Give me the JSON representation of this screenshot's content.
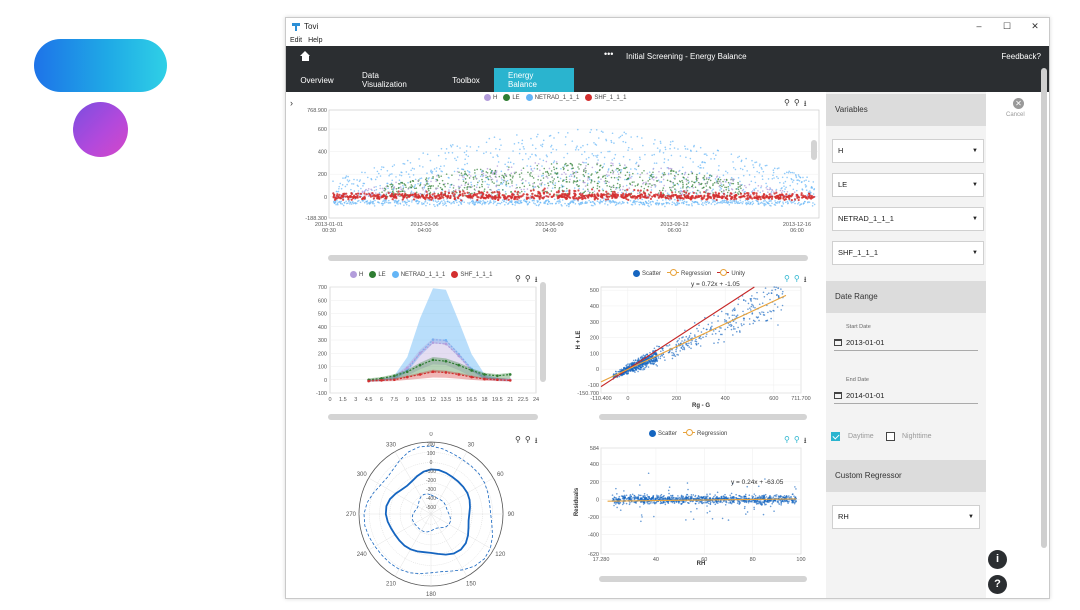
{
  "window": {
    "app_name": "Tovi",
    "controls": [
      "–",
      "☐",
      "✕"
    ]
  },
  "menu": {
    "items": [
      "Edit",
      "Help"
    ]
  },
  "header": {
    "more_label": "•••",
    "title": "Initial Screening - Energy Balance",
    "feedback": "Feedback?"
  },
  "tabs": [
    {
      "label": "Overview",
      "active": false
    },
    {
      "label": "Data Visualization",
      "active": false
    },
    {
      "label": "Toolbox",
      "active": false
    },
    {
      "label": "Energy Balance",
      "active": true
    }
  ],
  "colors": {
    "accent": "#2ab4cf",
    "H": "#b39ddb",
    "LE": "#2e7d32",
    "NETRAD": "#64b5f6",
    "SHF": "#d32f2f",
    "scatter": "#1565c0",
    "regression": "#e8a33c",
    "unity": "#c62828"
  },
  "icons": {
    "expand": "chevron-right-icon",
    "zoom_out": "zoom-out-icon",
    "zoom_in": "zoom-in-icon",
    "download": "download-icon"
  },
  "legend_series": [
    "H",
    "LE",
    "NETRAD_1_1_1",
    "SHF_1_1_1"
  ],
  "chart_data": [
    {
      "type": "scatter",
      "id": "timeseries",
      "legend": [
        "H",
        "LE",
        "NETRAD_1_1_1",
        "SHF_1_1_1"
      ],
      "ytick_labels": [
        "768.900",
        "600",
        "400",
        "200",
        "0",
        "-188.300"
      ],
      "xtick_labels": [
        [
          "2013-01-01",
          "00:30"
        ],
        [
          "2013-03-06",
          "04:00"
        ],
        [
          "2013-06-09",
          "04:00"
        ],
        [
          "2013-09-12",
          "06:00"
        ],
        [
          "2013-12-16",
          "06:00"
        ]
      ]
    },
    {
      "type": "line",
      "id": "diurnal",
      "legend": [
        "H",
        "LE",
        "NETRAD_1_1_1",
        "SHF_1_1_1"
      ],
      "x": [
        4.5,
        6,
        7.5,
        9,
        10.5,
        12,
        13.5,
        15,
        16.5,
        18,
        19.5,
        21
      ],
      "series": [
        {
          "name": "NETRAD_1_1_1",
          "values": [
            -10,
            -5,
            20,
            150,
            420,
            630,
            620,
            400,
            170,
            30,
            5,
            -5
          ]
        },
        {
          "name": "H",
          "values": [
            -5,
            0,
            20,
            90,
            200,
            280,
            270,
            180,
            70,
            20,
            5,
            0
          ]
        },
        {
          "name": "LE",
          "values": [
            0,
            10,
            30,
            60,
            110,
            150,
            140,
            110,
            70,
            40,
            30,
            40
          ]
        },
        {
          "name": "SHF_1_1_1",
          "values": [
            -10,
            -5,
            0,
            20,
            40,
            60,
            55,
            40,
            20,
            5,
            0,
            -5
          ]
        }
      ],
      "ytick_labels": [
        "700",
        "600",
        "500",
        "400",
        "300",
        "200",
        "100",
        "0",
        "-100"
      ],
      "xtick_labels": [
        "0",
        "1.5",
        "3",
        "4.5",
        "6",
        "7.5",
        "9",
        "10.5",
        "12",
        "13.5",
        "15",
        "16.5",
        "18",
        "19.5",
        "21",
        "22.5",
        "24"
      ]
    },
    {
      "type": "scatter",
      "id": "regression",
      "legend": [
        "Scatter",
        "Regression",
        "Unity"
      ],
      "equation": "y = 0.72x + -1.05",
      "xlabel": "Rg - G",
      "ylabel": "H + LE",
      "ytick_labels": [
        "500",
        "400",
        "300",
        "200",
        "100",
        "0",
        "-100",
        "-150.700"
      ],
      "xtick_labels": [
        "-110.400",
        "0",
        "200",
        "400",
        "600",
        "711.700"
      ]
    },
    {
      "type": "line",
      "id": "polar",
      "radial_tick_labels": [
        "200",
        "100",
        "0",
        "-100",
        "-200",
        "-300",
        "-400",
        "-500"
      ],
      "angle_labels": [
        "0",
        "30",
        "60",
        "90",
        "120",
        "150",
        "180",
        "210",
        "240",
        "270",
        "300",
        "330"
      ]
    },
    {
      "type": "scatter",
      "id": "residuals",
      "legend": [
        "Scatter",
        "Regression"
      ],
      "equation": "y = 0.24x + -63.05",
      "xlabel": "RH",
      "ylabel": "Residuals",
      "ytick_labels": [
        "584",
        "400",
        "200",
        "0",
        "-200",
        "-400",
        "-620"
      ],
      "xtick_labels": [
        "17.280",
        "40",
        "60",
        "80",
        "100"
      ]
    }
  ],
  "side": {
    "variables_title": "Variables",
    "selects": [
      "H",
      "LE",
      "NETRAD_1_1_1",
      "SHF_1_1_1"
    ],
    "date_range_title": "Date Range",
    "start_label": "Start Date",
    "start_value": "2013-01-01",
    "end_label": "End Date",
    "end_value": "2014-01-01",
    "daytime_label": "Daytime",
    "daytime_checked": true,
    "nighttime_label": "Nighttime",
    "nighttime_checked": false,
    "regressor_title": "Custom Regressor",
    "regressor_value": "RH"
  },
  "cancel_label": "Cancel",
  "info_button": "i",
  "help_button": "?"
}
